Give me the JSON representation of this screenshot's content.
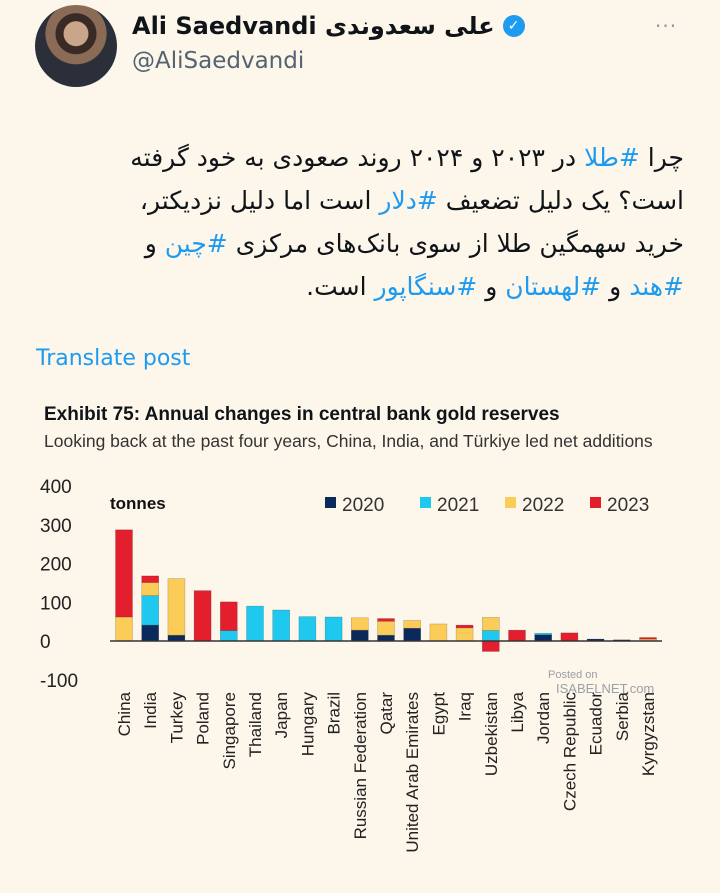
{
  "tweet": {
    "display_name": "Ali Saedvandi علی سعدوندی",
    "handle": "@AliSaedvandi",
    "verified_icon": "verified-badge-icon",
    "more_icon": "···",
    "body_lines": [
      [
        {
          "t": "چرا "
        },
        {
          "t": "#طلا",
          "tag": true
        },
        {
          "t": " در ۲۰۲۳ و ۲۰۲۴ روند صعودی به خود گرفته"
        }
      ],
      [
        {
          "t": "است؟ یک دلیل تضعیف "
        },
        {
          "t": "#دلار",
          "tag": true
        },
        {
          "t": " است اما دلیل نزدیکتر،"
        }
      ],
      [
        {
          "t": "خرید سهمگین طلا از سوی بانک‌های مرکزی "
        },
        {
          "t": "#چین",
          "tag": true
        },
        {
          "t": " و"
        }
      ],
      [
        {
          "t": "#هند",
          "tag": true
        },
        {
          "t": " و "
        },
        {
          "t": "#لهستان",
          "tag": true
        },
        {
          "t": " و "
        },
        {
          "t": "#سنگاپور",
          "tag": true
        },
        {
          "t": " است."
        }
      ]
    ],
    "translate_label": "Translate post",
    "accent_color": "#1d9bf0"
  },
  "watermark": {
    "line1": "Posted on",
    "line2": "ISABELNET.com"
  },
  "chart_data": {
    "type": "bar",
    "stacked": true,
    "title": "Exhibit 75: Annual changes in central bank gold reserves",
    "subtitle": "Looking back at the past four years, China, India, and Türkiye led net additions",
    "ylabel": "tonnes",
    "ylim": [
      -100,
      400
    ],
    "yticks": [
      400,
      300,
      200,
      100,
      0,
      -100
    ],
    "grid": false,
    "legend_position": "top-right",
    "categories": [
      "China",
      "India",
      "Turkey",
      "Poland",
      "Singapore",
      "Thailand",
      "Japan",
      "Hungary",
      "Brazil",
      "Russian Federation",
      "Qatar",
      "United Arab Emirates",
      "Egypt",
      "Iraq",
      "Uzbekistan",
      "Libya",
      "Jordan",
      "Czech Republic",
      "Ecuador",
      "Serbia",
      "Kyrgyzstan"
    ],
    "series": [
      {
        "name": "2020",
        "color": "#0b2a5b",
        "values": [
          0,
          41,
          15,
          0,
          0,
          0,
          0,
          0,
          0,
          28,
          15,
          33,
          0,
          0,
          0,
          0,
          16,
          0,
          5,
          3,
          0
        ]
      },
      {
        "name": "2021",
        "color": "#1ec8ef",
        "values": [
          0,
          76,
          0,
          0,
          27,
          90,
          80,
          63,
          62,
          0,
          0,
          0,
          0,
          0,
          27,
          0,
          4,
          0,
          0,
          0,
          0
        ]
      },
      {
        "name": "2022",
        "color": "#fbcc58",
        "values": [
          62,
          34,
          146,
          0,
          0,
          0,
          0,
          0,
          0,
          32,
          36,
          20,
          44,
          34,
          34,
          0,
          0,
          0,
          0,
          0,
          5
        ]
      },
      {
        "name": "2023",
        "color": "#e41f2d",
        "values": [
          225,
          17,
          0,
          130,
          74,
          0,
          0,
          0,
          0,
          0,
          7,
          0,
          0,
          7,
          -27,
          28,
          0,
          21,
          0,
          0,
          4
        ]
      }
    ]
  }
}
